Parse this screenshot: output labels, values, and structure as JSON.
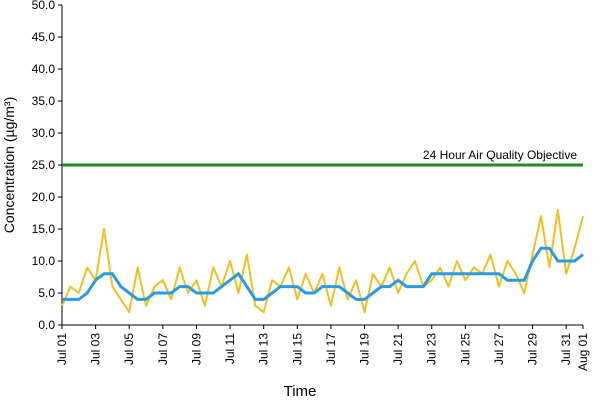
{
  "chart_data": {
    "type": "line",
    "x_label": "Time",
    "y_label": "Concentration (µg/m³)",
    "x": [
      0,
      0.5,
      1,
      1.5,
      2,
      2.5,
      3,
      3.5,
      4,
      4.5,
      5,
      5.5,
      6,
      6.5,
      7,
      7.5,
      8,
      8.5,
      9,
      9.5,
      10,
      10.5,
      11,
      11.5,
      12,
      12.5,
      13,
      13.5,
      14,
      14.5,
      15,
      15.5,
      16,
      16.5,
      17,
      17.5,
      18,
      18.5,
      19,
      19.5,
      20,
      20.5,
      21,
      21.5,
      22,
      22.5,
      23,
      23.5,
      24,
      24.5,
      25,
      25.5,
      26,
      26.5,
      27,
      27.5,
      28,
      28.5,
      29,
      29.5,
      30,
      30.5,
      31
    ],
    "series": [
      {
        "color": "#f0c020",
        "values": [
          3,
          6,
          5,
          9,
          7,
          15,
          6,
          4,
          2,
          9,
          3,
          6,
          7,
          4,
          9,
          5,
          7,
          3,
          9,
          6,
          10,
          5,
          11,
          3,
          2,
          7,
          6,
          9,
          4,
          8,
          5,
          8,
          3,
          9,
          4,
          7,
          2,
          8,
          6,
          9,
          5,
          8,
          10,
          6,
          7,
          9,
          6,
          10,
          7,
          9,
          8,
          11,
          6,
          10,
          8,
          5,
          11,
          17,
          9,
          18,
          8,
          12,
          17
        ]
      },
      {
        "color": "#2a9be0",
        "values": [
          4,
          4,
          4,
          5,
          7,
          8,
          8,
          6,
          5,
          4,
          4,
          5,
          5,
          5,
          6,
          6,
          5,
          5,
          5,
          6,
          7,
          8,
          6,
          4,
          4,
          5,
          6,
          6,
          6,
          5,
          5,
          6,
          6,
          6,
          5,
          4,
          4,
          5,
          6,
          6,
          7,
          6,
          6,
          6,
          8,
          8,
          8,
          8,
          8,
          8,
          8,
          8,
          8,
          7,
          7,
          7,
          10,
          12,
          12,
          10,
          10,
          10,
          11
        ]
      }
    ],
    "reference_lines": [
      {
        "value": 25,
        "label": "24 Hour Air Quality Objective",
        "color": "#228b22"
      }
    ],
    "xlim": [
      0,
      31
    ],
    "xticks": [
      {
        "value": 0,
        "label": "Jul 01"
      },
      {
        "value": 2,
        "label": "Jul 03"
      },
      {
        "value": 4,
        "label": "Jul 05"
      },
      {
        "value": 6,
        "label": "Jul 07"
      },
      {
        "value": 8,
        "label": "Jul 09"
      },
      {
        "value": 10,
        "label": "Jul 11"
      },
      {
        "value": 12,
        "label": "Jul 13"
      },
      {
        "value": 14,
        "label": "Jul 15"
      },
      {
        "value": 16,
        "label": "Jul 17"
      },
      {
        "value": 18,
        "label": "Jul 19"
      },
      {
        "value": 20,
        "label": "Jul 21"
      },
      {
        "value": 22,
        "label": "Jul 23"
      },
      {
        "value": 24,
        "label": "Jul 25"
      },
      {
        "value": 26,
        "label": "Jul 27"
      },
      {
        "value": 28,
        "label": "Jul 29"
      },
      {
        "value": 30,
        "label": "Jul 31"
      },
      {
        "value": 31,
        "label": "Aug 01"
      }
    ],
    "ylim": [
      0,
      50
    ],
    "yticks": [
      {
        "value": 0,
        "label": "0.0"
      },
      {
        "value": 5,
        "label": "5.0"
      },
      {
        "value": 10,
        "label": "10.0"
      },
      {
        "value": 15,
        "label": "15.0"
      },
      {
        "value": 20,
        "label": "20.0"
      },
      {
        "value": 25,
        "label": "25.0"
      },
      {
        "value": 30,
        "label": "30.0"
      },
      {
        "value": 35,
        "label": "35.0"
      },
      {
        "value": 40,
        "label": "40.0"
      },
      {
        "value": 45,
        "label": "45.0"
      },
      {
        "value": 50,
        "label": "50.0"
      }
    ]
  }
}
